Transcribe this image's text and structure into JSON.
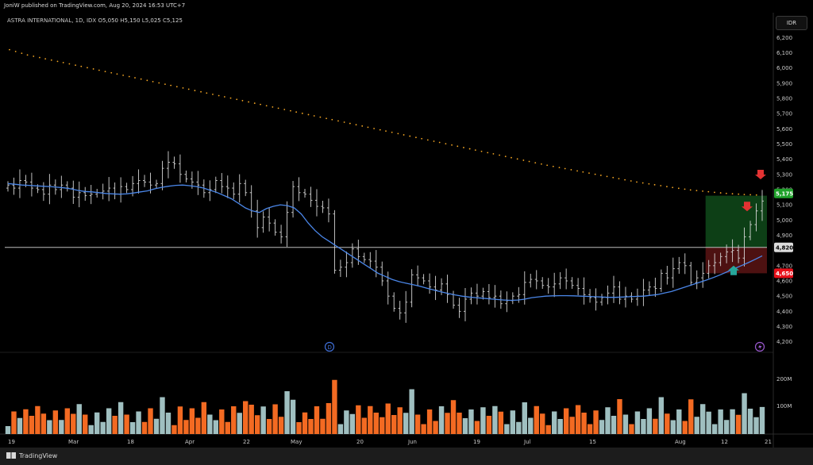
{
  "header": {
    "publisher": "JoniW published on TradingView.com, Aug 20, 2024 16:53 UTC+7"
  },
  "legend": {
    "name": "ASTRA INTERNATIONAL, 1D, IDX",
    "o_key": "O",
    "o": "5,050",
    "h_key": "H",
    "h": "5,150",
    "l_key": "L",
    "l": "5,025",
    "c_key": "C",
    "c": "5,125"
  },
  "currency_button": "IDR",
  "footer": {
    "brand": "TradingView"
  },
  "colors": {
    "background": "#000000",
    "ma": "#4a86e8",
    "ma200_dots": "#f5a623",
    "vol_up": "#9fbfc0",
    "vol_down": "#f36a22",
    "zone_green": "#0f4a1a",
    "zone_red": "#5a1414",
    "label_green": "#1fa12a",
    "label_red": "#e8101a",
    "arrow_red": "#e23232",
    "arrow_teal": "#26a69a"
  },
  "chart_data": {
    "type": "ohlc",
    "price_axis": {
      "ticks": [
        "6,200",
        "6,100",
        "6,000",
        "5,900",
        "5,800",
        "5,700",
        "5,600",
        "5,500",
        "5,400",
        "5,300",
        "5,200",
        "5,100",
        "5,000",
        "4,900",
        "4,700",
        "4,600",
        "4,500",
        "4,400",
        "4,300",
        "4,200"
      ],
      "ylim": [
        4120,
        6290
      ]
    },
    "volume_axis": {
      "ticks": [
        "200M",
        "100M"
      ]
    },
    "x_labels": [
      "19",
      "Mar",
      "18",
      "Apr",
      "22",
      "May",
      "20",
      "Jun",
      "19",
      "Jul",
      "15",
      "Aug",
      "12",
      "21"
    ],
    "price_labels": [
      {
        "text": "5,175",
        "value": 5175,
        "style": "green"
      },
      {
        "text": "4,820",
        "value": 4820,
        "style": "gray"
      },
      {
        "text": "4,650",
        "value": 4650,
        "style": "red"
      }
    ],
    "horizontal_line": 4820,
    "zones": [
      {
        "name": "profit-zone",
        "from": 4820,
        "to": 5160,
        "color": "green"
      },
      {
        "name": "stop-zone",
        "from": 4650,
        "to": 4820,
        "color": "red"
      }
    ],
    "markers": [
      "D",
      "lightning"
    ],
    "closes": [
      5230,
      5210,
      5260,
      5250,
      5210,
      5200,
      5170,
      5230,
      5200,
      5230,
      5210,
      5150,
      5180,
      5160,
      5170,
      5180,
      5190,
      5210,
      5170,
      5220,
      5200,
      5240,
      5260,
      5250,
      5230,
      5240,
      5340,
      5380,
      5370,
      5300,
      5270,
      5250,
      5230,
      5180,
      5200,
      5260,
      5220,
      5210,
      5170,
      5240,
      5180,
      5060,
      4950,
      5020,
      4980,
      4920,
      4890,
      5050,
      5220,
      5180,
      5170,
      5130,
      5090,
      5080,
      5040,
      4670,
      4690,
      4720,
      4810,
      4760,
      4740,
      4730,
      4690,
      4600,
      4500,
      4420,
      4390,
      4460,
      4640,
      4620,
      4600,
      4560,
      4540,
      4580,
      4510,
      4440,
      4400,
      4480,
      4520,
      4500,
      4530,
      4490,
      4500,
      4450,
      4470,
      4500,
      4510,
      4590,
      4610,
      4600,
      4570,
      4560,
      4580,
      4620,
      4600,
      4570,
      4550,
      4510,
      4490,
      4460,
      4490,
      4520,
      4560,
      4480,
      4500,
      4480,
      4500,
      4540,
      4560,
      4550,
      4650,
      4620,
      4680,
      4720,
      4700,
      4590,
      4620,
      4650,
      4700,
      4720,
      4760,
      4790,
      4800,
      4750,
      4890,
      4970,
      5060,
      5125
    ],
    "ma_short": [
      5240,
      5235,
      5230,
      5228,
      5225,
      5222,
      5220,
      5216,
      5212,
      5205,
      5195,
      5188,
      5185,
      5180,
      5175,
      5172,
      5170,
      5172,
      5178,
      5185,
      5192,
      5205,
      5215,
      5222,
      5228,
      5230,
      5226,
      5220,
      5210,
      5195,
      5180,
      5160,
      5140,
      5110,
      5080,
      5060,
      5050,
      5075,
      5090,
      5100,
      5095,
      5080,
      5040,
      4980,
      4930,
      4890,
      4860,
      4830,
      4800,
      4770,
      4740,
      4710,
      4680,
      4650,
      4630,
      4610,
      4595,
      4585,
      4575,
      4565,
      4552,
      4540,
      4528,
      4518,
      4508,
      4500,
      4494,
      4490,
      4486,
      4482,
      4478,
      4474,
      4472,
      4474,
      4480,
      4490,
      4495,
      4500,
      4502,
      4503,
      4503,
      4502,
      4500,
      4498,
      4496,
      4494,
      4492,
      4492,
      4494,
      4496,
      4498,
      4500,
      4505,
      4510,
      4520,
      4530,
      4545,
      4560,
      4575,
      4590,
      4605,
      4622,
      4640,
      4660,
      4680,
      4700,
      4720,
      4742,
      4765
    ],
    "ma_long": [
      6120,
      6085,
      6060,
      6035,
      6010,
      5985,
      5960,
      5935,
      5910,
      5885,
      5860,
      5835,
      5810,
      5785,
      5760,
      5735,
      5710,
      5685,
      5660,
      5635,
      5610,
      5585,
      5560,
      5535,
      5510,
      5485,
      5460,
      5435,
      5410,
      5385,
      5360,
      5338,
      5316,
      5294,
      5272,
      5250,
      5232,
      5214,
      5198,
      5186,
      5175,
      5168,
      5163
    ]
  }
}
